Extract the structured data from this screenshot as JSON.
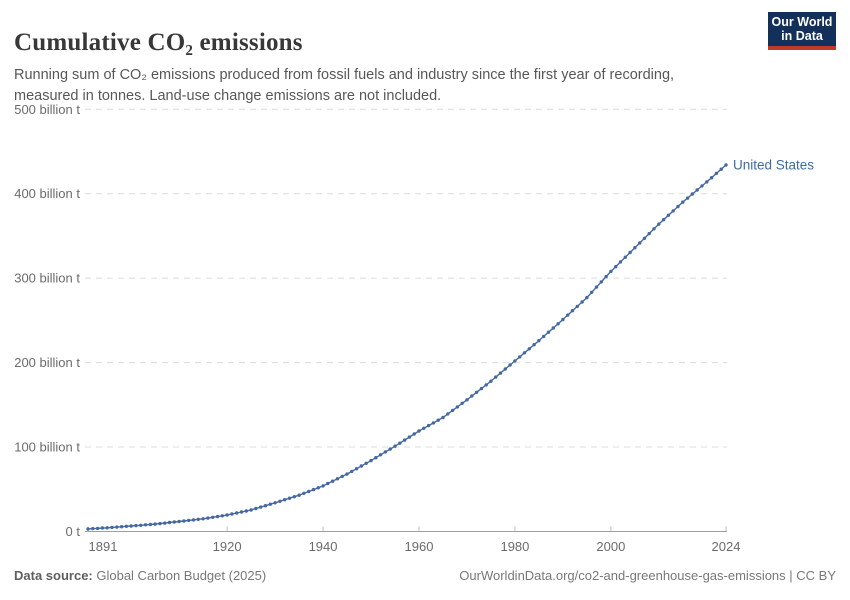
{
  "header": {
    "title": "Cumulative CO₂ emissions",
    "subtitle": "Running sum of CO₂ emissions produced from fossil fuels and industry since the first year of recording, measured in tonnes. Land-use change emissions are not included.",
    "logo": {
      "line1": "Our World",
      "line2": "in Data",
      "bg_color": "#12305a",
      "accent_color": "#c0392b"
    }
  },
  "footer": {
    "source_label": "Data source:",
    "source_value": " Global Carbon Budget (2025)",
    "right_text": "OurWorldinData.org/co2-and-greenhouse-gas-emissions | CC BY"
  },
  "chart_data": {
    "type": "line",
    "title": "Cumulative CO₂ emissions",
    "unit": "billion tonnes CO₂",
    "xlim": [
      1891,
      2024
    ],
    "ylim": [
      0,
      500
    ],
    "x_ticks": [
      1891,
      1920,
      1940,
      1960,
      1980,
      2000,
      2024
    ],
    "y_ticks": [
      0,
      100,
      200,
      300,
      400,
      500
    ],
    "y_tick_labels": [
      "0 t",
      "100 billion t",
      "200 billion t",
      "300 billion t",
      "400 billion t",
      "500 billion t"
    ],
    "grid": "dashed-horizontal",
    "legend": "end-of-line-label",
    "line_color": "#4568a2",
    "label_color": "#3d6aa8",
    "series": [
      {
        "name": "United States",
        "x_start": 1891,
        "x_end": 2024,
        "years": [
          1891,
          1892,
          1893,
          1894,
          1895,
          1896,
          1897,
          1898,
          1899,
          1900,
          1901,
          1902,
          1903,
          1904,
          1905,
          1906,
          1907,
          1908,
          1909,
          1910,
          1911,
          1912,
          1913,
          1914,
          1915,
          1916,
          1917,
          1918,
          1919,
          1920,
          1921,
          1922,
          1923,
          1924,
          1925,
          1926,
          1927,
          1928,
          1929,
          1930,
          1931,
          1932,
          1933,
          1934,
          1935,
          1936,
          1937,
          1938,
          1939,
          1940,
          1941,
          1942,
          1943,
          1944,
          1945,
          1946,
          1947,
          1948,
          1949,
          1950,
          1951,
          1952,
          1953,
          1954,
          1955,
          1956,
          1957,
          1958,
          1959,
          1960,
          1961,
          1962,
          1963,
          1964,
          1965,
          1966,
          1967,
          1968,
          1969,
          1970,
          1971,
          1972,
          1973,
          1974,
          1975,
          1976,
          1977,
          1978,
          1979,
          1980,
          1981,
          1982,
          1983,
          1984,
          1985,
          1986,
          1987,
          1988,
          1989,
          1990,
          1991,
          1992,
          1993,
          1994,
          1995,
          1996,
          1997,
          1998,
          1999,
          2000,
          2001,
          2002,
          2003,
          2004,
          2005,
          2006,
          2007,
          2008,
          2009,
          2010,
          2011,
          2012,
          2013,
          2014,
          2015,
          2016,
          2017,
          2018,
          2019,
          2020,
          2021,
          2022,
          2023,
          2024
        ],
        "values": [
          3.0,
          3.4,
          3.7,
          4.1,
          4.4,
          4.8,
          5.2,
          5.7,
          6.1,
          6.5,
          7.0,
          7.4,
          7.9,
          8.3,
          8.8,
          9.4,
          10.0,
          10.6,
          11.2,
          11.8,
          12.4,
          13.1,
          13.7,
          14.4,
          15.0,
          15.9,
          16.8,
          17.7,
          18.6,
          19.5,
          20.7,
          21.9,
          23.1,
          24.3,
          25.5,
          27.2,
          28.9,
          30.6,
          32.3,
          34.0,
          35.8,
          37.6,
          39.4,
          41.2,
          43.0,
          45.2,
          47.4,
          49.6,
          51.8,
          54.0,
          56.8,
          59.6,
          62.4,
          65.2,
          68.0,
          71.2,
          74.4,
          77.6,
          80.8,
          84.0,
          87.4,
          90.8,
          94.2,
          97.6,
          101.0,
          104.6,
          108.2,
          111.8,
          115.4,
          119.0,
          122.2,
          125.4,
          128.6,
          131.8,
          135.0,
          139.2,
          143.4,
          147.6,
          151.8,
          156.0,
          160.4,
          164.8,
          169.2,
          173.6,
          178.0,
          182.8,
          187.6,
          192.4,
          197.2,
          202.0,
          206.8,
          211.6,
          216.4,
          221.2,
          226.0,
          231.0,
          236.0,
          241.0,
          246.0,
          251.0,
          256.2,
          261.4,
          266.6,
          271.8,
          277.0,
          283.2,
          289.4,
          295.6,
          301.8,
          308.0,
          313.6,
          319.2,
          324.8,
          330.4,
          336.0,
          341.6,
          347.2,
          352.8,
          358.4,
          364.0,
          369.2,
          374.4,
          379.6,
          384.8,
          390.0,
          394.8,
          399.6,
          404.4,
          409.2,
          414.0,
          419.0,
          424.0,
          429.0,
          434.0
        ]
      }
    ]
  }
}
